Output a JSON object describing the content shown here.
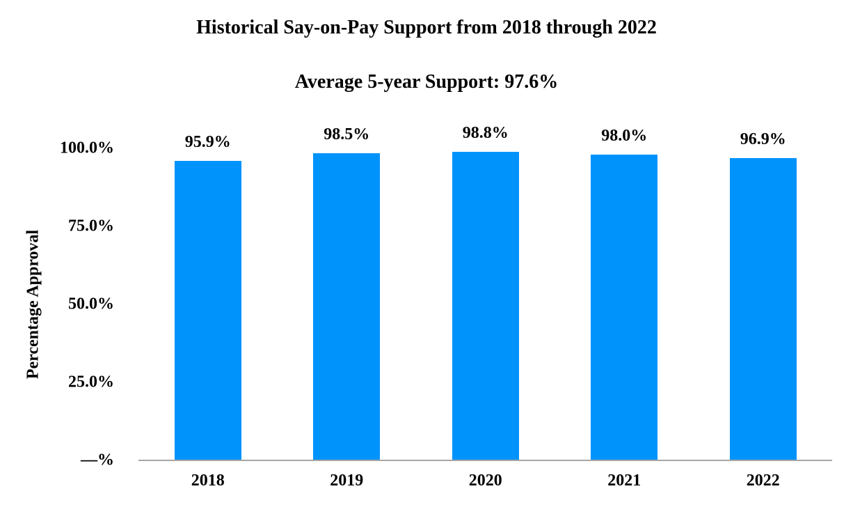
{
  "chart_data": {
    "type": "bar",
    "title": "Historical Say-on-Pay Support from 2018 through 2022",
    "subtitle": "Average 5-year Support:  97.6%",
    "xlabel": "",
    "ylabel": "Percentage Approval",
    "categories": [
      "2018",
      "2019",
      "2020",
      "2021",
      "2022"
    ],
    "values": [
      95.9,
      98.5,
      98.8,
      98.0,
      96.9
    ],
    "value_labels": [
      "95.9%",
      "98.5%",
      "98.8%",
      "98.0%",
      "96.9%"
    ],
    "yticks": [
      "—%",
      "25.0%",
      "50.0%",
      "75.0%",
      "100.0%"
    ],
    "ytick_values": [
      0,
      25,
      50,
      75,
      100
    ],
    "ylim": [
      0,
      100
    ],
    "grid": false,
    "legend": null,
    "bar_color": "#0093fc",
    "axis_color": "#a6a6a6"
  }
}
